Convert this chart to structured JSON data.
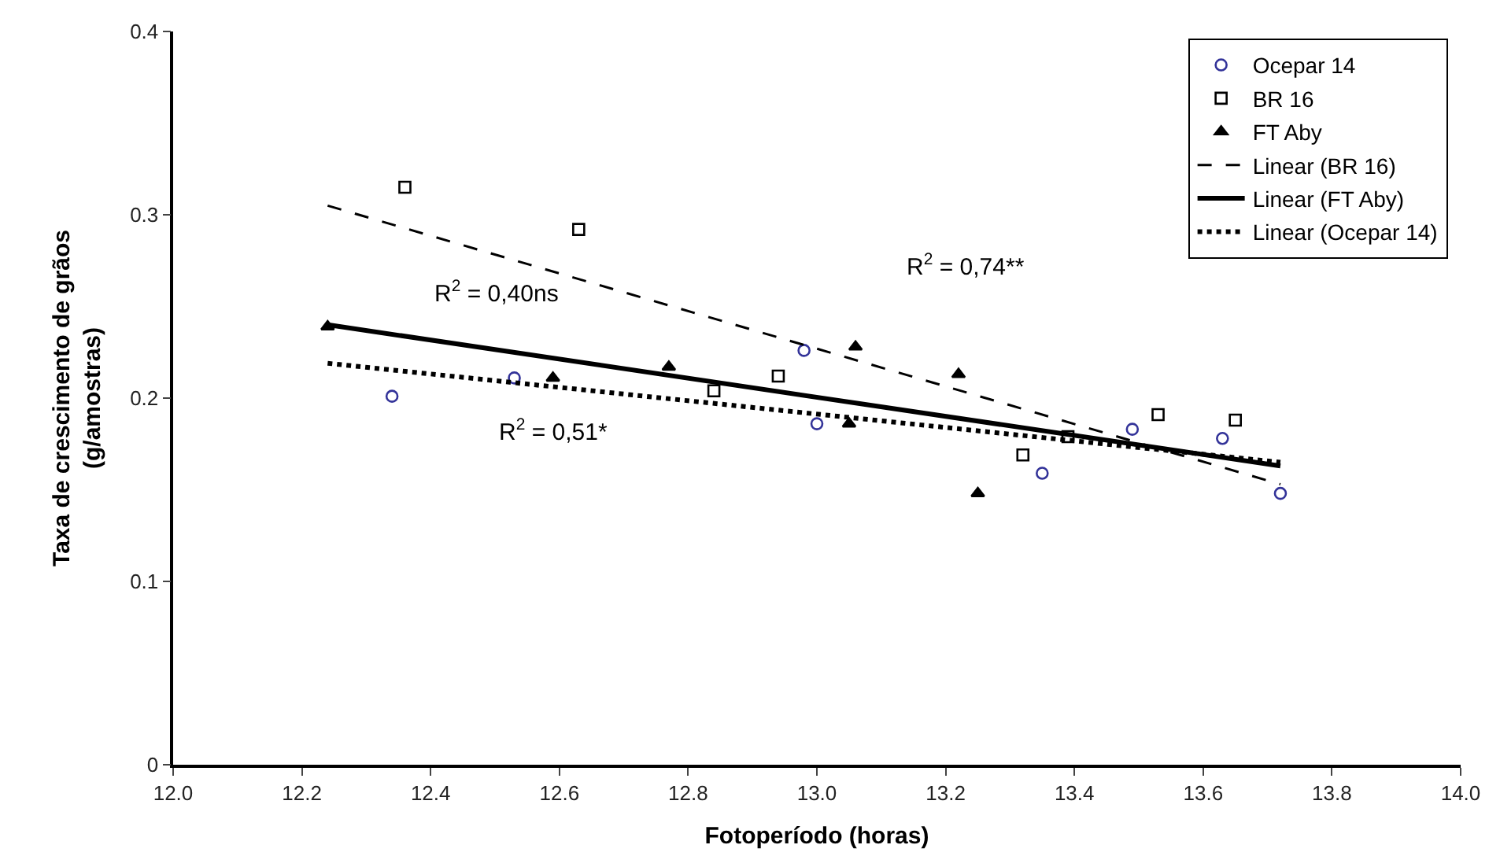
{
  "chart_data": {
    "type": "scatter",
    "xlabel": "Fotoperíodo (horas)",
    "ylabel": "Taxa de crescimento de grãos\n(g/amostras)",
    "xlim": [
      12.0,
      14.0
    ],
    "xticks": [
      {
        "value": 12.0,
        "label": "12.0"
      },
      {
        "value": 12.2,
        "label": "12.2"
      },
      {
        "value": 12.4,
        "label": "12.4"
      },
      {
        "value": 12.6,
        "label": "12.6"
      },
      {
        "value": 12.8,
        "label": "12.8"
      },
      {
        "value": 13.0,
        "label": "13.0"
      },
      {
        "value": 13.2,
        "label": "13.2"
      },
      {
        "value": 13.4,
        "label": "13.4"
      },
      {
        "value": 13.6,
        "label": "13.6"
      },
      {
        "value": 13.8,
        "label": "13.8"
      },
      {
        "value": 14.0,
        "label": "14.0"
      }
    ],
    "ylim": [
      0,
      0.4
    ],
    "yticks": [
      0,
      0.1,
      0.2,
      0.3,
      0.4
    ],
    "legend": "top right",
    "series": [
      {
        "name": "Ocepar 14",
        "marker": "circle",
        "color": "#333399",
        "x": [
          12.34,
          12.53,
          12.98,
          13.0,
          13.35,
          13.49,
          13.63,
          13.72
        ],
        "values": [
          0.201,
          0.211,
          0.226,
          0.186,
          0.159,
          0.183,
          0.178,
          0.148
        ]
      },
      {
        "name": "BR 16",
        "marker": "square",
        "color": "#000000",
        "x": [
          12.36,
          12.63,
          12.84,
          12.94,
          13.32,
          13.39,
          13.53,
          13.65
        ],
        "values": [
          0.315,
          0.292,
          0.204,
          0.212,
          0.169,
          0.179,
          0.191,
          0.188
        ]
      },
      {
        "name": "FT Aby",
        "marker": "triangle",
        "color": "#000000",
        "x": [
          12.24,
          12.59,
          12.77,
          13.05,
          13.06,
          13.22,
          13.25
        ],
        "values": [
          0.239,
          0.211,
          0.217,
          0.186,
          0.228,
          0.213,
          0.148
        ]
      },
      {
        "name": "Linear (BR 16)",
        "type": "line",
        "line_style": "dashed",
        "color": "#000000",
        "x": [
          12.24,
          13.72
        ],
        "values": [
          0.305,
          0.153
        ]
      },
      {
        "name": "Linear (FT Aby)",
        "type": "line",
        "line_style": "solid",
        "color": "#000000",
        "x": [
          12.24,
          13.72
        ],
        "values": [
          0.24,
          0.163
        ]
      },
      {
        "name": "Linear (Ocepar 14)",
        "type": "line",
        "line_style": "dotted",
        "color": "#000000",
        "x": [
          12.24,
          13.72
        ],
        "values": [
          0.219,
          0.165
        ]
      }
    ],
    "annotations": [
      "R$^{2}$ = 0,40ns",
      "R$^{2}$ = 0,74**",
      "R$^{2}$ = 0,51*"
    ]
  }
}
